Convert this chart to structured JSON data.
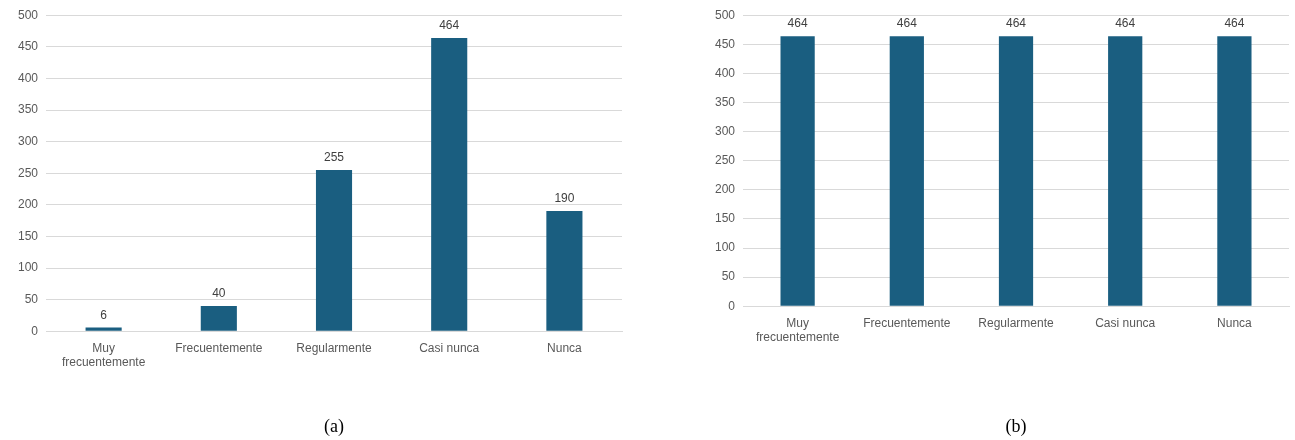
{
  "chart_data": [
    {
      "type": "bar",
      "categories": [
        "Muy frecuentemente",
        "Frecuentemente",
        "Regularmente",
        "Casi nunca",
        "Nunca"
      ],
      "values": [
        6,
        40,
        255,
        464,
        190
      ],
      "color": "#1a5e80",
      "ylim": [
        0,
        500
      ],
      "yticks": [
        0,
        50,
        100,
        150,
        200,
        250,
        300,
        350,
        400,
        450,
        500
      ],
      "grid": "y",
      "data_labels": true,
      "annotations": [
        "(a)"
      ]
    },
    {
      "type": "bar",
      "categories": [
        "Muy frecuentemente",
        "Frecuentemente",
        "Regularmente",
        "Casi nunca",
        "Nunca"
      ],
      "values": [
        464,
        464,
        464,
        464,
        464
      ],
      "color": "#1a5e80",
      "ylim": [
        0,
        500
      ],
      "yticks": [
        0,
        50,
        100,
        150,
        200,
        250,
        300,
        350,
        400,
        450,
        500
      ],
      "grid": "y",
      "data_labels": true,
      "annotations": [
        "(b)"
      ]
    }
  ]
}
